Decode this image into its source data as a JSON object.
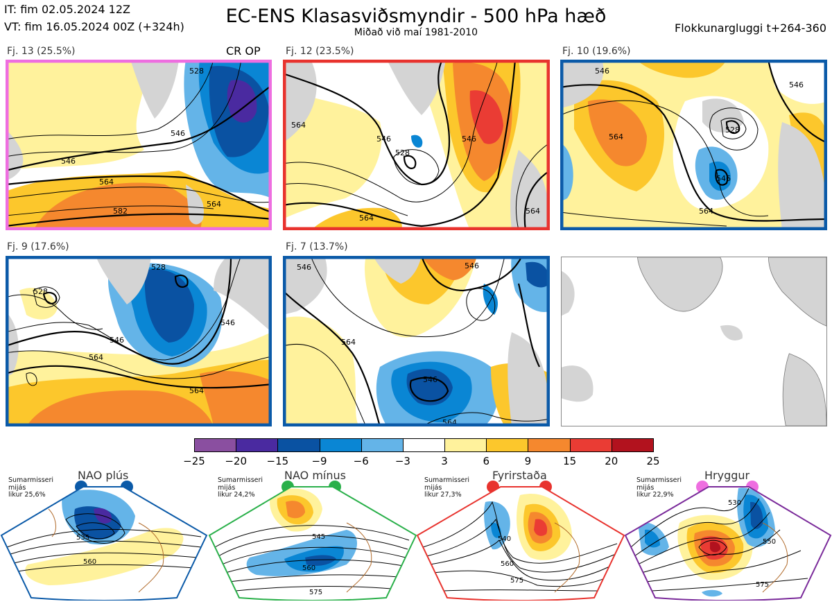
{
  "header": {
    "it_line": "IT: fim 02.05.2024 12Z",
    "vt_line": "VT: fim 16.05.2024 00Z  (+324h)",
    "title": "EC-ENS Klasasviðsmyndir - 500 hPa hæð",
    "subtitle": "Miðað við maí 1981-2010",
    "window": "Flokkunargluggi t+264-360"
  },
  "panels": [
    {
      "label": "Fj. 13 (25.5%)",
      "frame_color": "#ee6ee0",
      "extra_label": "CR OP",
      "contours": [
        "546",
        "546",
        "564",
        "582",
        "564",
        "528"
      ]
    },
    {
      "label": "Fj. 12 (23.5%)",
      "frame_color": "#e8332e",
      "contours": [
        "546",
        "546",
        "528",
        "564",
        "564",
        "564"
      ]
    },
    {
      "label": "Fj. 10 (19.6%)",
      "frame_color": "#0b5aa8",
      "contours": [
        "564",
        "546",
        "528",
        "546",
        "564",
        "546"
      ]
    },
    {
      "label": "Fj. 9 (17.6%)",
      "frame_color": "#0b5aa8",
      "contours": [
        "528",
        "528",
        "546",
        "546",
        "564",
        "564"
      ]
    },
    {
      "label": "Fj. 7 (13.7%)",
      "frame_color": "#0b5aa8",
      "contours": [
        "546",
        "546",
        "564",
        "546",
        "564"
      ]
    }
  ],
  "colorbar": {
    "colors": [
      "#8a4fa0",
      "#4a2aa0",
      "#0a52a2",
      "#0a86d4",
      "#64b4e8",
      "#ffffff",
      "#fff29c",
      "#fcc72c",
      "#f5882e",
      "#ea3c34",
      "#b2121e"
    ],
    "ticks": [
      "−25",
      "−20",
      "−15",
      "−9",
      "−6",
      "−3",
      "3",
      "6",
      "9",
      "15",
      "20",
      "25"
    ]
  },
  "regimes": [
    {
      "name": "NAO plús",
      "note": [
        "Sumarmisseri",
        "mijás",
        "likur 25,6%"
      ],
      "color": "#0b5aa8",
      "contours": [
        "535",
        "560"
      ]
    },
    {
      "name": "NAO mínus",
      "note": [
        "Sumarmisseri",
        "mijás",
        "likur 24,2%"
      ],
      "color": "#2ab04a",
      "contours": [
        "545",
        "560",
        "575"
      ]
    },
    {
      "name": "Fyrirstaða",
      "note": [
        "Sumarmisseri",
        "mijás",
        "likur 27,3%"
      ],
      "color": "#e8332e",
      "contours": [
        "540",
        "560",
        "575"
      ]
    },
    {
      "name": "Hryggur",
      "note": [
        "Sumarmisseri",
        "mijás",
        "likur 22,9%"
      ],
      "color": "#ee6ee0",
      "contours": [
        "530",
        "550",
        "575"
      ]
    }
  ]
}
